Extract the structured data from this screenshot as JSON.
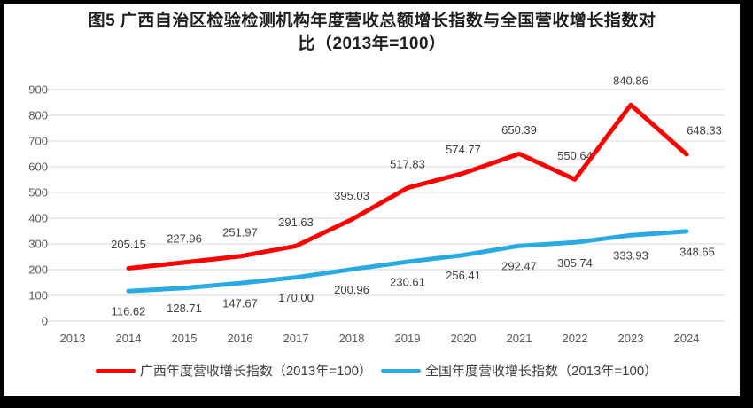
{
  "header": {
    "line1": "图5  广西自治区检验检测机构年度营收总额增长指数与全国营收增长指数对",
    "line2": "比（2013年=100）"
  },
  "legend": [
    {
      "label": "广西年度营收增长指数（2013年=100）",
      "color": "#FF0000"
    },
    {
      "label": "全国年度营收增长指数（2013年=100）",
      "color": "#29ABE2"
    }
  ],
  "chart_data": {
    "type": "line",
    "title": "图5 广西自治区检验检测机构年度营收总额增长指数与全国营收增长指数对比（2013年=100）",
    "categories": [
      "2013",
      "2014",
      "2015",
      "2016",
      "2017",
      "2018",
      "2019",
      "2020",
      "2021",
      "2022",
      "2023",
      "2024"
    ],
    "series": [
      {
        "name": "广西年度营收增长指数（2013年=100）",
        "color": "#FF0000",
        "values": [
          null,
          205.15,
          227.96,
          251.97,
          291.63,
          395.03,
          517.83,
          574.77,
          650.39,
          550.64,
          840.86,
          648.33
        ]
      },
      {
        "name": "全国年度营收增长指数（2013年=100）",
        "color": "#29ABE2",
        "values": [
          null,
          116.62,
          128.71,
          147.67,
          170.0,
          200.96,
          230.61,
          256.41,
          292.47,
          305.74,
          333.93,
          348.65
        ]
      }
    ],
    "ylim": [
      0,
      900
    ],
    "ytick_step": 100,
    "grid": true,
    "data_labels": true,
    "legend_position": "bottom",
    "colors": {
      "grid": "#D9D9D9",
      "tick_text": "#595959",
      "label_text": "#404040"
    }
  }
}
